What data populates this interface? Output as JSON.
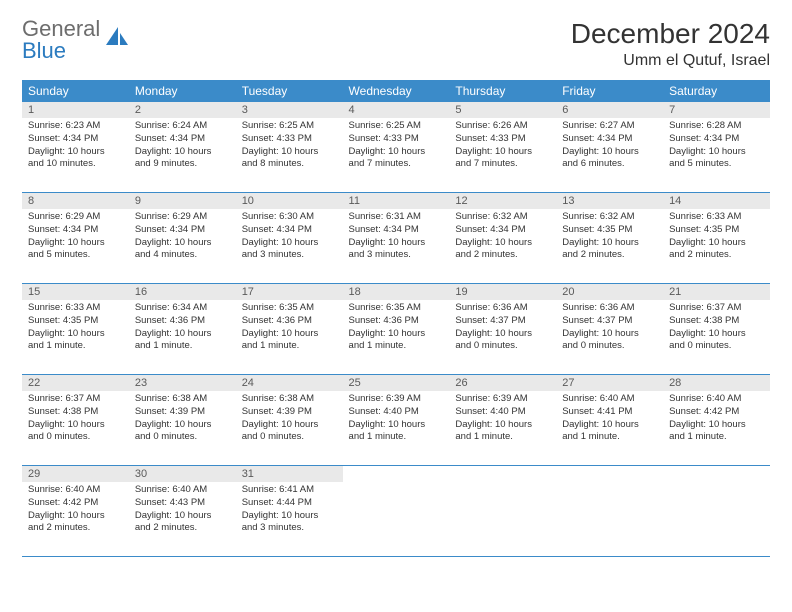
{
  "logo": {
    "text_gray": "General",
    "text_blue": "Blue"
  },
  "header": {
    "month": "December 2024",
    "location": "Umm el Qutuf, Israel"
  },
  "weekdays": [
    "Sunday",
    "Monday",
    "Tuesday",
    "Wednesday",
    "Thursday",
    "Friday",
    "Saturday"
  ],
  "colors": {
    "header_bg": "#3b8bc9",
    "daynum_bg": "#e9e9e9",
    "rule": "#3b8bc9"
  },
  "days": [
    {
      "n": "1",
      "sr": "Sunrise: 6:23 AM",
      "ss": "Sunset: 4:34 PM",
      "dl": "Daylight: 10 hours and 10 minutes."
    },
    {
      "n": "2",
      "sr": "Sunrise: 6:24 AM",
      "ss": "Sunset: 4:34 PM",
      "dl": "Daylight: 10 hours and 9 minutes."
    },
    {
      "n": "3",
      "sr": "Sunrise: 6:25 AM",
      "ss": "Sunset: 4:33 PM",
      "dl": "Daylight: 10 hours and 8 minutes."
    },
    {
      "n": "4",
      "sr": "Sunrise: 6:25 AM",
      "ss": "Sunset: 4:33 PM",
      "dl": "Daylight: 10 hours and 7 minutes."
    },
    {
      "n": "5",
      "sr": "Sunrise: 6:26 AM",
      "ss": "Sunset: 4:33 PM",
      "dl": "Daylight: 10 hours and 7 minutes."
    },
    {
      "n": "6",
      "sr": "Sunrise: 6:27 AM",
      "ss": "Sunset: 4:34 PM",
      "dl": "Daylight: 10 hours and 6 minutes."
    },
    {
      "n": "7",
      "sr": "Sunrise: 6:28 AM",
      "ss": "Sunset: 4:34 PM",
      "dl": "Daylight: 10 hours and 5 minutes."
    },
    {
      "n": "8",
      "sr": "Sunrise: 6:29 AM",
      "ss": "Sunset: 4:34 PM",
      "dl": "Daylight: 10 hours and 5 minutes."
    },
    {
      "n": "9",
      "sr": "Sunrise: 6:29 AM",
      "ss": "Sunset: 4:34 PM",
      "dl": "Daylight: 10 hours and 4 minutes."
    },
    {
      "n": "10",
      "sr": "Sunrise: 6:30 AM",
      "ss": "Sunset: 4:34 PM",
      "dl": "Daylight: 10 hours and 3 minutes."
    },
    {
      "n": "11",
      "sr": "Sunrise: 6:31 AM",
      "ss": "Sunset: 4:34 PM",
      "dl": "Daylight: 10 hours and 3 minutes."
    },
    {
      "n": "12",
      "sr": "Sunrise: 6:32 AM",
      "ss": "Sunset: 4:34 PM",
      "dl": "Daylight: 10 hours and 2 minutes."
    },
    {
      "n": "13",
      "sr": "Sunrise: 6:32 AM",
      "ss": "Sunset: 4:35 PM",
      "dl": "Daylight: 10 hours and 2 minutes."
    },
    {
      "n": "14",
      "sr": "Sunrise: 6:33 AM",
      "ss": "Sunset: 4:35 PM",
      "dl": "Daylight: 10 hours and 2 minutes."
    },
    {
      "n": "15",
      "sr": "Sunrise: 6:33 AM",
      "ss": "Sunset: 4:35 PM",
      "dl": "Daylight: 10 hours and 1 minute."
    },
    {
      "n": "16",
      "sr": "Sunrise: 6:34 AM",
      "ss": "Sunset: 4:36 PM",
      "dl": "Daylight: 10 hours and 1 minute."
    },
    {
      "n": "17",
      "sr": "Sunrise: 6:35 AM",
      "ss": "Sunset: 4:36 PM",
      "dl": "Daylight: 10 hours and 1 minute."
    },
    {
      "n": "18",
      "sr": "Sunrise: 6:35 AM",
      "ss": "Sunset: 4:36 PM",
      "dl": "Daylight: 10 hours and 1 minute."
    },
    {
      "n": "19",
      "sr": "Sunrise: 6:36 AM",
      "ss": "Sunset: 4:37 PM",
      "dl": "Daylight: 10 hours and 0 minutes."
    },
    {
      "n": "20",
      "sr": "Sunrise: 6:36 AM",
      "ss": "Sunset: 4:37 PM",
      "dl": "Daylight: 10 hours and 0 minutes."
    },
    {
      "n": "21",
      "sr": "Sunrise: 6:37 AM",
      "ss": "Sunset: 4:38 PM",
      "dl": "Daylight: 10 hours and 0 minutes."
    },
    {
      "n": "22",
      "sr": "Sunrise: 6:37 AM",
      "ss": "Sunset: 4:38 PM",
      "dl": "Daylight: 10 hours and 0 minutes."
    },
    {
      "n": "23",
      "sr": "Sunrise: 6:38 AM",
      "ss": "Sunset: 4:39 PM",
      "dl": "Daylight: 10 hours and 0 minutes."
    },
    {
      "n": "24",
      "sr": "Sunrise: 6:38 AM",
      "ss": "Sunset: 4:39 PM",
      "dl": "Daylight: 10 hours and 0 minutes."
    },
    {
      "n": "25",
      "sr": "Sunrise: 6:39 AM",
      "ss": "Sunset: 4:40 PM",
      "dl": "Daylight: 10 hours and 1 minute."
    },
    {
      "n": "26",
      "sr": "Sunrise: 6:39 AM",
      "ss": "Sunset: 4:40 PM",
      "dl": "Daylight: 10 hours and 1 minute."
    },
    {
      "n": "27",
      "sr": "Sunrise: 6:40 AM",
      "ss": "Sunset: 4:41 PM",
      "dl": "Daylight: 10 hours and 1 minute."
    },
    {
      "n": "28",
      "sr": "Sunrise: 6:40 AM",
      "ss": "Sunset: 4:42 PM",
      "dl": "Daylight: 10 hours and 1 minute."
    },
    {
      "n": "29",
      "sr": "Sunrise: 6:40 AM",
      "ss": "Sunset: 4:42 PM",
      "dl": "Daylight: 10 hours and 2 minutes."
    },
    {
      "n": "30",
      "sr": "Sunrise: 6:40 AM",
      "ss": "Sunset: 4:43 PM",
      "dl": "Daylight: 10 hours and 2 minutes."
    },
    {
      "n": "31",
      "sr": "Sunrise: 6:41 AM",
      "ss": "Sunset: 4:44 PM",
      "dl": "Daylight: 10 hours and 3 minutes."
    }
  ]
}
